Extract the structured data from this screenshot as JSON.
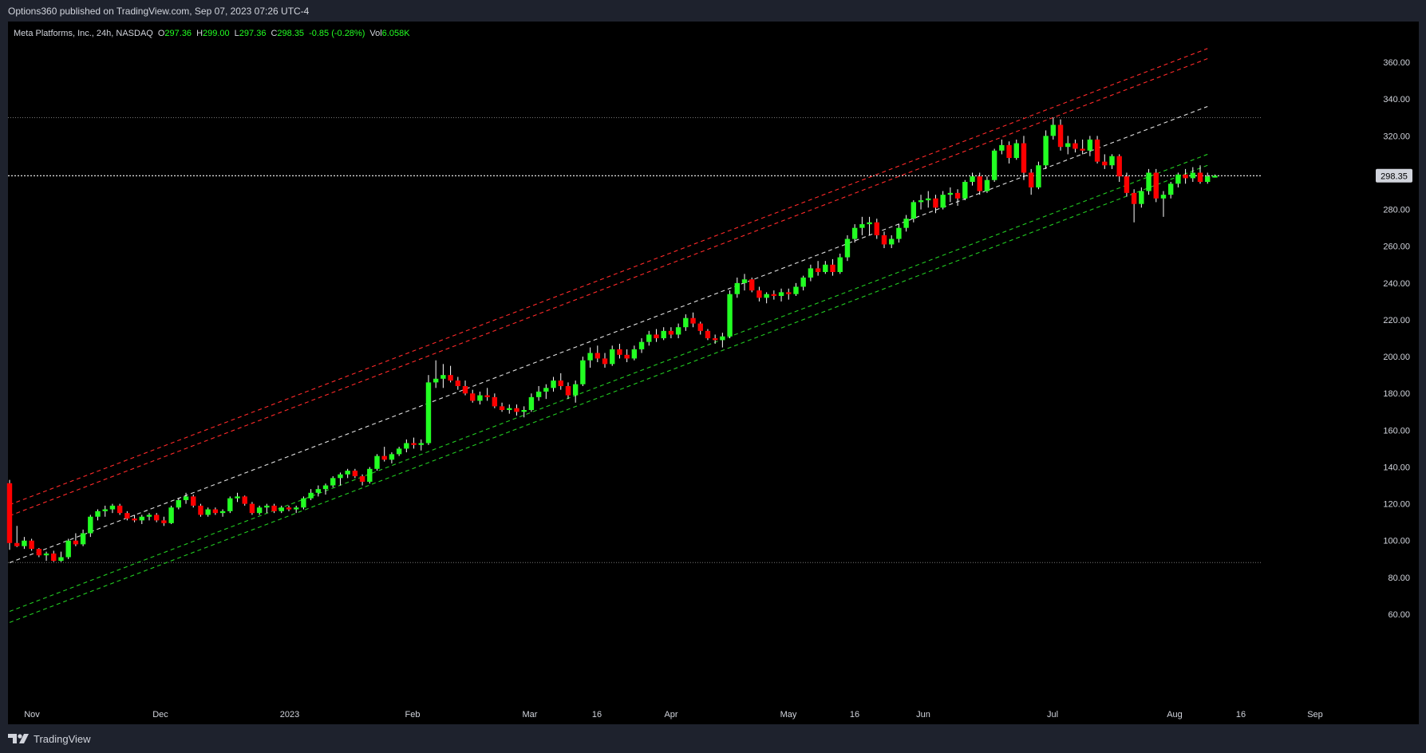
{
  "header": {
    "published": "Options360 published on TradingView.com, Sep 07, 2023 07:26 UTC-4"
  },
  "legend": {
    "symbol": "Meta Platforms, Inc., 24h, NASDAQ",
    "open_label": "O",
    "open": "297.36",
    "high_label": "H",
    "high": "299.00",
    "low_label": "L",
    "low": "297.36",
    "close_label": "C",
    "close": "298.35",
    "change": "-0.85 (-0.28%)",
    "vol_label": "Vol",
    "vol": "6.058K"
  },
  "footer": {
    "brand": "TradingView",
    "logo_icon": "tradingview-logo-icon"
  },
  "colors": {
    "bg": "#000000",
    "frame": "#1e222d",
    "up": "#22ff22",
    "down": "#ff0000",
    "text": "#d1d4dc",
    "resist": "#ff2a2a",
    "support": "#22cc22",
    "mid": "#e0e0e0"
  },
  "chart_data": {
    "type": "candlestick",
    "ylim": [
      50,
      370
    ],
    "yticks": [
      "60.00",
      "80.00",
      "100.00",
      "120.00",
      "140.00",
      "160.00",
      "180.00",
      "200.00",
      "220.00",
      "240.00",
      "260.00",
      "280.00",
      "300.00",
      "320.00",
      "340.00",
      "360.00"
    ],
    "xticks": [
      "Nov",
      "Dec",
      "2023",
      "Feb",
      "Mar",
      "16",
      "Apr",
      "May",
      "16",
      "Jun",
      "Jul",
      "Aug",
      "16",
      "Sep"
    ],
    "last_price": "298.35",
    "horizontal_levels": [
      329.9,
      88.1
    ],
    "close_line": 298.35,
    "candles": [
      [
        131.2,
        133,
        95,
        98.7
      ],
      [
        98.7,
        108,
        96.5,
        97
      ],
      [
        97,
        102,
        95.5,
        100
      ],
      [
        100,
        101,
        94.5,
        95.5
      ],
      [
        95.5,
        96,
        91,
        92
      ],
      [
        92,
        94,
        89,
        93
      ],
      [
        93,
        94.5,
        88.5,
        89
      ],
      [
        89,
        94,
        88.5,
        91
      ],
      [
        91,
        101,
        90,
        100
      ],
      [
        100,
        104,
        97,
        98
      ],
      [
        98,
        106,
        97,
        104
      ],
      [
        104,
        114,
        102,
        113
      ],
      [
        113,
        117,
        111,
        116
      ],
      [
        116,
        119,
        113,
        117
      ],
      [
        117,
        120,
        115,
        119
      ],
      [
        119,
        120,
        114,
        115
      ],
      [
        115,
        116,
        111,
        112
      ],
      [
        112,
        114,
        110,
        111
      ],
      [
        111,
        114,
        109,
        113
      ],
      [
        113,
        115,
        111,
        114
      ],
      [
        114,
        115,
        110,
        111
      ],
      [
        111,
        113,
        108,
        109.5
      ],
      [
        109.5,
        119,
        109,
        118
      ],
      [
        118,
        123,
        117,
        122
      ],
      [
        122,
        126,
        120,
        124
      ],
      [
        124,
        125,
        118,
        119
      ],
      [
        119,
        120,
        113,
        114
      ],
      [
        114,
        118,
        113,
        117
      ],
      [
        117,
        118,
        114,
        115
      ],
      [
        115,
        117,
        113,
        116
      ],
      [
        116,
        124,
        115,
        123
      ],
      [
        123,
        126,
        121,
        124
      ],
      [
        124,
        124.5,
        119,
        120
      ],
      [
        120,
        121,
        114,
        115
      ],
      [
        115,
        119,
        114,
        118
      ],
      [
        118,
        120,
        115,
        119
      ],
      [
        119,
        120,
        115,
        116
      ],
      [
        116,
        119,
        115,
        118
      ],
      [
        118,
        119,
        116,
        117
      ],
      [
        117,
        119,
        115,
        118
      ],
      [
        118,
        124,
        117,
        123
      ],
      [
        123,
        128,
        122,
        126
      ],
      [
        126,
        130,
        124,
        128
      ],
      [
        128,
        131,
        125,
        130
      ],
      [
        130,
        135,
        129,
        134
      ],
      [
        134,
        137,
        130,
        136
      ],
      [
        136,
        139,
        134,
        138
      ],
      [
        138,
        139,
        134,
        135
      ],
      [
        135,
        136,
        130,
        132
      ],
      [
        132,
        140,
        131,
        139
      ],
      [
        139,
        147,
        138,
        146
      ],
      [
        146,
        151,
        143,
        144
      ],
      [
        144,
        148,
        142,
        147
      ],
      [
        147,
        151,
        146,
        150
      ],
      [
        150,
        155,
        148,
        153
      ],
      [
        153,
        156,
        150,
        152
      ],
      [
        152,
        155,
        149,
        153
      ],
      [
        153,
        190,
        152,
        186
      ],
      [
        186,
        198,
        183,
        188
      ],
      [
        188,
        196,
        183,
        190
      ],
      [
        190,
        195,
        186,
        187
      ],
      [
        187,
        189,
        182,
        184
      ],
      [
        184,
        187,
        179,
        180
      ],
      [
        180,
        182,
        175,
        176
      ],
      [
        176,
        181,
        174,
        179
      ],
      [
        179,
        183,
        176,
        178
      ],
      [
        178,
        180,
        172,
        173
      ],
      [
        173,
        175,
        170,
        171
      ],
      [
        171,
        174,
        169,
        172
      ],
      [
        172,
        174,
        168,
        170
      ],
      [
        170,
        173,
        167,
        171
      ],
      [
        171,
        180,
        170,
        178
      ],
      [
        178,
        184,
        176,
        181
      ],
      [
        181,
        185,
        177,
        183
      ],
      [
        183,
        189,
        181,
        187
      ],
      [
        187,
        191,
        182,
        184
      ],
      [
        184,
        186,
        177,
        179
      ],
      [
        179,
        187,
        175,
        185
      ],
      [
        185,
        200,
        184,
        198
      ],
      [
        198,
        205,
        194,
        202
      ],
      [
        202,
        206,
        197,
        199
      ],
      [
        199,
        202,
        194,
        196
      ],
      [
        196,
        206,
        195,
        204
      ],
      [
        204,
        207,
        199,
        201
      ],
      [
        201,
        204,
        197,
        199
      ],
      [
        199,
        206,
        198,
        204
      ],
      [
        204,
        210,
        202,
        208
      ],
      [
        208,
        214,
        206,
        212
      ],
      [
        212,
        215,
        208,
        210
      ],
      [
        210,
        216,
        209,
        214
      ],
      [
        214,
        216,
        210,
        212
      ],
      [
        212,
        218,
        210,
        216
      ],
      [
        216,
        223,
        214,
        221
      ],
      [
        221,
        224,
        216,
        218
      ],
      [
        218,
        219,
        212,
        214
      ],
      [
        214,
        215,
        209,
        210
      ],
      [
        210,
        212,
        207,
        209
      ],
      [
        209,
        213,
        205,
        211
      ],
      [
        211,
        236,
        210,
        234
      ],
      [
        234,
        243,
        232,
        240
      ],
      [
        240,
        245,
        236,
        242
      ],
      [
        242,
        243,
        235,
        236
      ],
      [
        236,
        238,
        230,
        232
      ],
      [
        232,
        235,
        229,
        234
      ],
      [
        234,
        236,
        231,
        233
      ],
      [
        233,
        237,
        230,
        235
      ],
      [
        235,
        237,
        231,
        234
      ],
      [
        234,
        240,
        233,
        238
      ],
      [
        238,
        244,
        236,
        243
      ],
      [
        243,
        250,
        241,
        248
      ],
      [
        248,
        252,
        244,
        246
      ],
      [
        246,
        252,
        245,
        250
      ],
      [
        250,
        253,
        244,
        246
      ],
      [
        246,
        256,
        245,
        254
      ],
      [
        254,
        266,
        252,
        264
      ],
      [
        264,
        272,
        262,
        270
      ],
      [
        270,
        276,
        266,
        272
      ],
      [
        272,
        276,
        266,
        273
      ],
      [
        273,
        275,
        264,
        266
      ],
      [
        266,
        268,
        259,
        261
      ],
      [
        261,
        266,
        259,
        264
      ],
      [
        264,
        272,
        262,
        270
      ],
      [
        270,
        277,
        268,
        275
      ],
      [
        275,
        285,
        273,
        284
      ],
      [
        284,
        288,
        280,
        285
      ],
      [
        285,
        290,
        281,
        286
      ],
      [
        286,
        288,
        278,
        281
      ],
      [
        281,
        290,
        280,
        288
      ],
      [
        288,
        292,
        284,
        289
      ],
      [
        289,
        291,
        282,
        286
      ],
      [
        286,
        296,
        285,
        295
      ],
      [
        295,
        300,
        293,
        298
      ],
      [
        298,
        300,
        288,
        290
      ],
      [
        290,
        298,
        289,
        296
      ],
      [
        296,
        313,
        295,
        312
      ],
      [
        312,
        318,
        310,
        315
      ],
      [
        315,
        317,
        305,
        308
      ],
      [
        308,
        318,
        307,
        316
      ],
      [
        316,
        320,
        296,
        300
      ],
      [
        300,
        302,
        288,
        292
      ],
      [
        292,
        306,
        291,
        304
      ],
      [
        304,
        323,
        302,
        320
      ],
      [
        320,
        330,
        318,
        326
      ],
      [
        326,
        329,
        312,
        314
      ],
      [
        314,
        320,
        310,
        316
      ],
      [
        316,
        318,
        311,
        313
      ],
      [
        313,
        318,
        310,
        312
      ],
      [
        312,
        320,
        309,
        318
      ],
      [
        318,
        320,
        305,
        306
      ],
      [
        306,
        310,
        302,
        304
      ],
      [
        304,
        310,
        302,
        309
      ],
      [
        309,
        310,
        295,
        298
      ],
      [
        298,
        300,
        287,
        289
      ],
      [
        289,
        291,
        273,
        283
      ],
      [
        283,
        292,
        281,
        290
      ],
      [
        290,
        302,
        288,
        300
      ],
      [
        300,
        302,
        284,
        286
      ],
      [
        286,
        290,
        276,
        288
      ],
      [
        288,
        295,
        286,
        294
      ],
      [
        294,
        300,
        292,
        299
      ],
      [
        299,
        302,
        294,
        297
      ],
      [
        297,
        303,
        295,
        300
      ],
      [
        300,
        304,
        294,
        295
      ],
      [
        295,
        300,
        294,
        298
      ],
      [
        297.36,
        299,
        297.36,
        298.35
      ]
    ],
    "trendlines": {
      "resistance": [
        [
          [
            0,
            119.5
          ],
          [
            163,
            367.5
          ]
        ],
        [
          [
            0,
            113.5
          ],
          [
            163,
            362
          ]
        ]
      ],
      "midline": [
        [
          [
            0,
            88
          ],
          [
            163,
            336
          ]
        ]
      ],
      "support": [
        [
          [
            0,
            61.5
          ],
          [
            163,
            310
          ]
        ],
        [
          [
            0,
            55.5
          ],
          [
            163,
            304
          ]
        ]
      ]
    }
  }
}
